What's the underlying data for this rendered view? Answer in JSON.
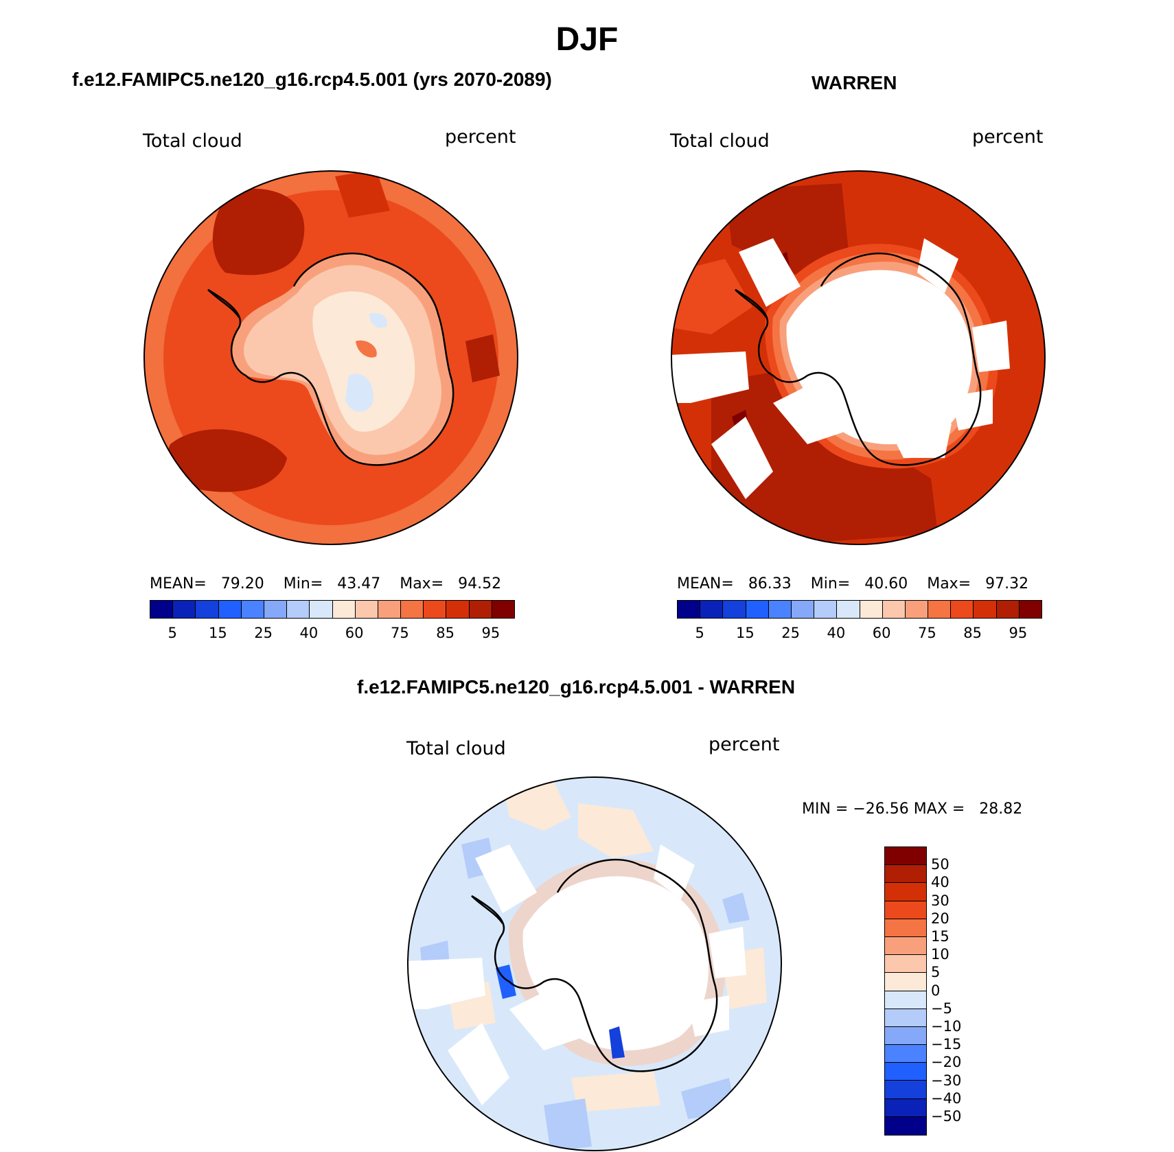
{
  "title": "DJF",
  "panels": [
    {
      "id": "model",
      "title": "f.e12.FAMIPC5.ne120_g16.rcp4.5.001 (yrs 2070-2089)",
      "variable": "Total cloud",
      "units": "percent",
      "stats": {
        "mean_label": "MEAN=",
        "mean": "79.20",
        "min_label": "Min=",
        "min": "43.47",
        "max_label": "Max=",
        "max": "94.52"
      },
      "field": "high cloud cover over ocean (75-95%), lower over Antarctic interior (50-65%)"
    },
    {
      "id": "obs",
      "title": "WARREN",
      "variable": "Total cloud",
      "units": "percent",
      "stats": {
        "mean_label": "MEAN=",
        "mean": "86.33",
        "min_label": "Min=",
        "min": "40.60",
        "max_label": "Max=",
        "max": "97.32"
      },
      "field": "ocean 85-95%, missing data over Antarctica and some coastal sectors"
    },
    {
      "id": "diff",
      "title": "f.e12.FAMIPC5.ne120_g16.rcp4.5.001 - WARREN",
      "variable": "Total cloud",
      "units": "percent",
      "stats": {
        "min_label": "MIN =",
        "min": "−26.56",
        "max_label": "MAX =",
        "max": "28.82"
      }
    }
  ],
  "colorbar_abs": {
    "colors": [
      "#00008b",
      "#0a22b8",
      "#1440dc",
      "#2060ff",
      "#4a82ff",
      "#86a8f8",
      "#b4ccfa",
      "#d8e8fa",
      "#fde9d8",
      "#fbc8ad",
      "#f8a07c",
      "#f47444",
      "#ec4a1c",
      "#d43008",
      "#b01e04",
      "#800000"
    ],
    "labels": [
      "5",
      "15",
      "25",
      "40",
      "60",
      "75",
      "85",
      "95"
    ]
  },
  "colorbar_diff": {
    "colors": [
      "#800000",
      "#b01e04",
      "#d43008",
      "#ec4a1c",
      "#f47444",
      "#f8a07c",
      "#fbc8ad",
      "#fde9d8",
      "#d8e8fa",
      "#b4ccfa",
      "#86a8f8",
      "#4a82ff",
      "#2060ff",
      "#1440dc",
      "#0a22b8",
      "#00008b"
    ],
    "labels": [
      "50",
      "40",
      "30",
      "20",
      "15",
      "10",
      "5",
      "0",
      "−5",
      "−10",
      "−15",
      "−20",
      "−30",
      "−40",
      "−50"
    ]
  }
}
